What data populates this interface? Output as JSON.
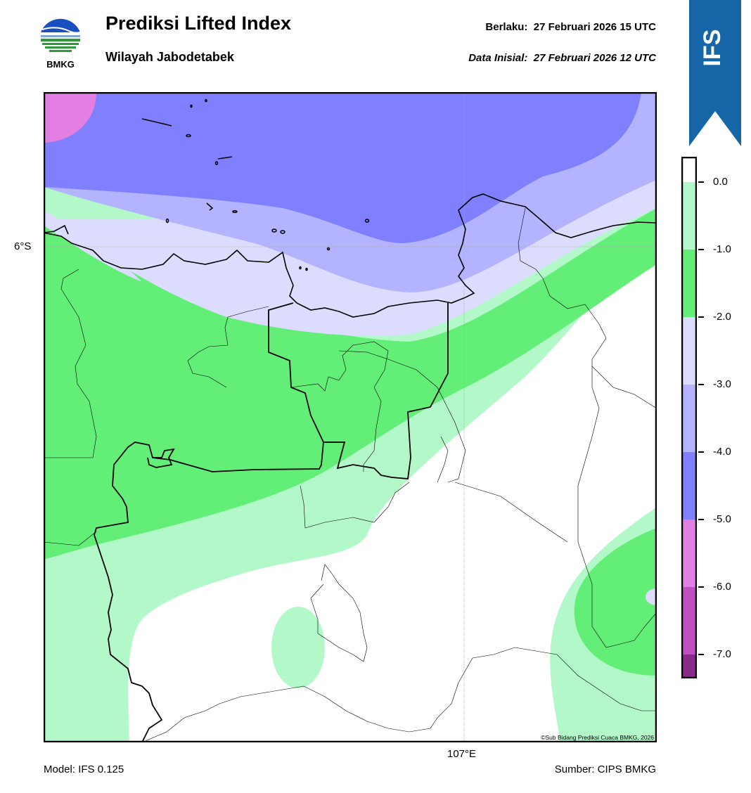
{
  "header": {
    "title": "Prediksi Lifted Index",
    "subtitle": "Wilayah Jabodetabek",
    "valid_label": "Berlaku:",
    "valid_time": "27 Februari 2026 15 UTC",
    "init_label": "Data Inisial:",
    "init_time": "27 Februari 2026 12 UTC",
    "valid_line": "Berlaku:  27 Februari 2026 15 UTC",
    "init_line": "Data Inisial:  27 Februari 2026 12 UTC"
  },
  "logo": {
    "text": "BMKG",
    "icon": "bmkg-logo-icon"
  },
  "ribbon": {
    "text": "IFS",
    "color": "#1565a7"
  },
  "map": {
    "lat_label": "6°S",
    "lon_label": "107°E",
    "copyright": "©Sub Bidang Prediksi Cuaca BMKG, 2026"
  },
  "colorbar": {
    "ticks": [
      "0.0",
      "-1.0",
      "-2.0",
      "-3.0",
      "-4.0",
      "-5.0",
      "-6.0",
      "-7.0"
    ],
    "colors": {
      "above_0": "#ffffff",
      "0_to_-1": "#b3f8c8",
      "-1_to_-2": "#63ee78",
      "-2_to_-3": "#dcdcff",
      "-3_to_-4": "#b3b3ff",
      "-4_to_-5": "#8080ff",
      "-5_to_-6": "#e37fe3",
      "-6_to_-7": "#c050c0",
      "below_-7": "#8a2a8a"
    }
  },
  "footer": {
    "model": "Model: IFS 0.125",
    "source": "Sumber: CIPS BMKG"
  }
}
